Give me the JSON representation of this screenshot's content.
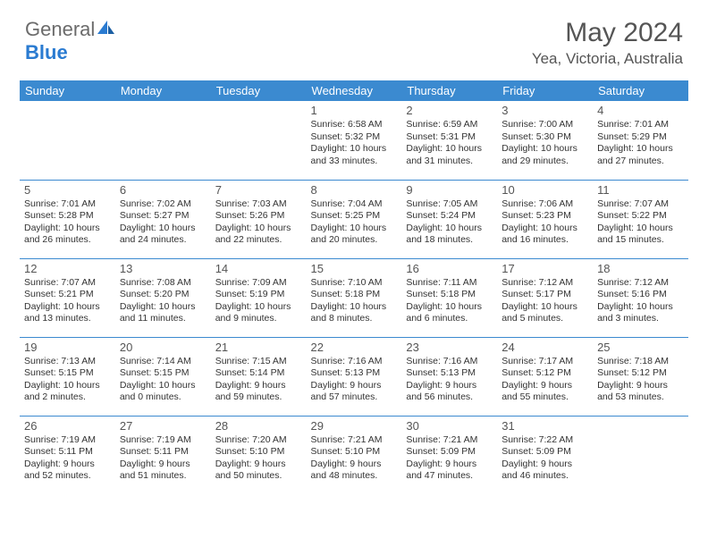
{
  "logo": {
    "part1": "General",
    "part2": "Blue"
  },
  "title": "May 2024",
  "location": "Yea, Victoria, Australia",
  "colors": {
    "header_bg": "#3b8ad0",
    "header_text": "#ffffff",
    "cell_border": "#3b8ad0",
    "logo_blue": "#2a7bd1",
    "text": "#333333",
    "title_text": "#555555"
  },
  "day_headers": [
    "Sunday",
    "Monday",
    "Tuesday",
    "Wednesday",
    "Thursday",
    "Friday",
    "Saturday"
  ],
  "weeks": [
    [
      {
        "day": "",
        "sunrise": "",
        "sunset": "",
        "daylight": ""
      },
      {
        "day": "",
        "sunrise": "",
        "sunset": "",
        "daylight": ""
      },
      {
        "day": "",
        "sunrise": "",
        "sunset": "",
        "daylight": ""
      },
      {
        "day": "1",
        "sunrise": "Sunrise: 6:58 AM",
        "sunset": "Sunset: 5:32 PM",
        "daylight": "Daylight: 10 hours and 33 minutes."
      },
      {
        "day": "2",
        "sunrise": "Sunrise: 6:59 AM",
        "sunset": "Sunset: 5:31 PM",
        "daylight": "Daylight: 10 hours and 31 minutes."
      },
      {
        "day": "3",
        "sunrise": "Sunrise: 7:00 AM",
        "sunset": "Sunset: 5:30 PM",
        "daylight": "Daylight: 10 hours and 29 minutes."
      },
      {
        "day": "4",
        "sunrise": "Sunrise: 7:01 AM",
        "sunset": "Sunset: 5:29 PM",
        "daylight": "Daylight: 10 hours and 27 minutes."
      }
    ],
    [
      {
        "day": "5",
        "sunrise": "Sunrise: 7:01 AM",
        "sunset": "Sunset: 5:28 PM",
        "daylight": "Daylight: 10 hours and 26 minutes."
      },
      {
        "day": "6",
        "sunrise": "Sunrise: 7:02 AM",
        "sunset": "Sunset: 5:27 PM",
        "daylight": "Daylight: 10 hours and 24 minutes."
      },
      {
        "day": "7",
        "sunrise": "Sunrise: 7:03 AM",
        "sunset": "Sunset: 5:26 PM",
        "daylight": "Daylight: 10 hours and 22 minutes."
      },
      {
        "day": "8",
        "sunrise": "Sunrise: 7:04 AM",
        "sunset": "Sunset: 5:25 PM",
        "daylight": "Daylight: 10 hours and 20 minutes."
      },
      {
        "day": "9",
        "sunrise": "Sunrise: 7:05 AM",
        "sunset": "Sunset: 5:24 PM",
        "daylight": "Daylight: 10 hours and 18 minutes."
      },
      {
        "day": "10",
        "sunrise": "Sunrise: 7:06 AM",
        "sunset": "Sunset: 5:23 PM",
        "daylight": "Daylight: 10 hours and 16 minutes."
      },
      {
        "day": "11",
        "sunrise": "Sunrise: 7:07 AM",
        "sunset": "Sunset: 5:22 PM",
        "daylight": "Daylight: 10 hours and 15 minutes."
      }
    ],
    [
      {
        "day": "12",
        "sunrise": "Sunrise: 7:07 AM",
        "sunset": "Sunset: 5:21 PM",
        "daylight": "Daylight: 10 hours and 13 minutes."
      },
      {
        "day": "13",
        "sunrise": "Sunrise: 7:08 AM",
        "sunset": "Sunset: 5:20 PM",
        "daylight": "Daylight: 10 hours and 11 minutes."
      },
      {
        "day": "14",
        "sunrise": "Sunrise: 7:09 AM",
        "sunset": "Sunset: 5:19 PM",
        "daylight": "Daylight: 10 hours and 9 minutes."
      },
      {
        "day": "15",
        "sunrise": "Sunrise: 7:10 AM",
        "sunset": "Sunset: 5:18 PM",
        "daylight": "Daylight: 10 hours and 8 minutes."
      },
      {
        "day": "16",
        "sunrise": "Sunrise: 7:11 AM",
        "sunset": "Sunset: 5:18 PM",
        "daylight": "Daylight: 10 hours and 6 minutes."
      },
      {
        "day": "17",
        "sunrise": "Sunrise: 7:12 AM",
        "sunset": "Sunset: 5:17 PM",
        "daylight": "Daylight: 10 hours and 5 minutes."
      },
      {
        "day": "18",
        "sunrise": "Sunrise: 7:12 AM",
        "sunset": "Sunset: 5:16 PM",
        "daylight": "Daylight: 10 hours and 3 minutes."
      }
    ],
    [
      {
        "day": "19",
        "sunrise": "Sunrise: 7:13 AM",
        "sunset": "Sunset: 5:15 PM",
        "daylight": "Daylight: 10 hours and 2 minutes."
      },
      {
        "day": "20",
        "sunrise": "Sunrise: 7:14 AM",
        "sunset": "Sunset: 5:15 PM",
        "daylight": "Daylight: 10 hours and 0 minutes."
      },
      {
        "day": "21",
        "sunrise": "Sunrise: 7:15 AM",
        "sunset": "Sunset: 5:14 PM",
        "daylight": "Daylight: 9 hours and 59 minutes."
      },
      {
        "day": "22",
        "sunrise": "Sunrise: 7:16 AM",
        "sunset": "Sunset: 5:13 PM",
        "daylight": "Daylight: 9 hours and 57 minutes."
      },
      {
        "day": "23",
        "sunrise": "Sunrise: 7:16 AM",
        "sunset": "Sunset: 5:13 PM",
        "daylight": "Daylight: 9 hours and 56 minutes."
      },
      {
        "day": "24",
        "sunrise": "Sunrise: 7:17 AM",
        "sunset": "Sunset: 5:12 PM",
        "daylight": "Daylight: 9 hours and 55 minutes."
      },
      {
        "day": "25",
        "sunrise": "Sunrise: 7:18 AM",
        "sunset": "Sunset: 5:12 PM",
        "daylight": "Daylight: 9 hours and 53 minutes."
      }
    ],
    [
      {
        "day": "26",
        "sunrise": "Sunrise: 7:19 AM",
        "sunset": "Sunset: 5:11 PM",
        "daylight": "Daylight: 9 hours and 52 minutes."
      },
      {
        "day": "27",
        "sunrise": "Sunrise: 7:19 AM",
        "sunset": "Sunset: 5:11 PM",
        "daylight": "Daylight: 9 hours and 51 minutes."
      },
      {
        "day": "28",
        "sunrise": "Sunrise: 7:20 AM",
        "sunset": "Sunset: 5:10 PM",
        "daylight": "Daylight: 9 hours and 50 minutes."
      },
      {
        "day": "29",
        "sunrise": "Sunrise: 7:21 AM",
        "sunset": "Sunset: 5:10 PM",
        "daylight": "Daylight: 9 hours and 48 minutes."
      },
      {
        "day": "30",
        "sunrise": "Sunrise: 7:21 AM",
        "sunset": "Sunset: 5:09 PM",
        "daylight": "Daylight: 9 hours and 47 minutes."
      },
      {
        "day": "31",
        "sunrise": "Sunrise: 7:22 AM",
        "sunset": "Sunset: 5:09 PM",
        "daylight": "Daylight: 9 hours and 46 minutes."
      },
      {
        "day": "",
        "sunrise": "",
        "sunset": "",
        "daylight": ""
      }
    ]
  ]
}
